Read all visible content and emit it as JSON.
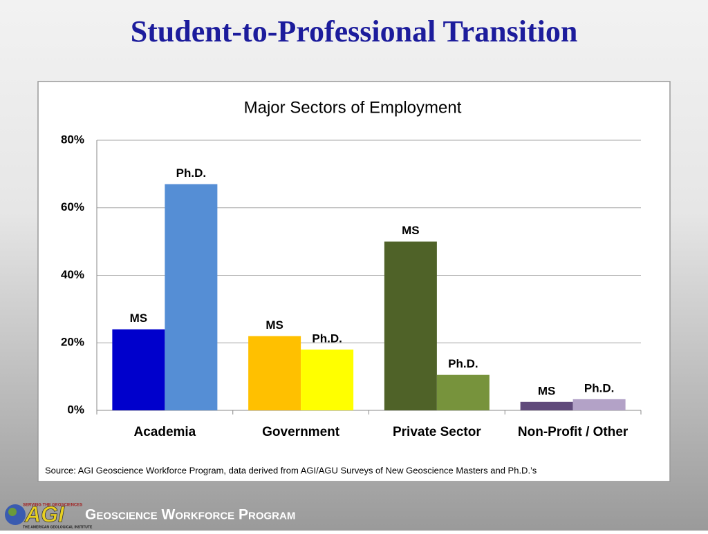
{
  "slide": {
    "title": "Student-to-Professional Transition"
  },
  "chart_data": {
    "type": "bar",
    "title": "Major Sectors of Employment",
    "categories": [
      "Academia",
      "Government",
      "Private Sector",
      "Non-Profit / Other"
    ],
    "series": [
      {
        "name": "MS",
        "colors": [
          "#0000cc",
          "#ffc000",
          "#4f6228",
          "#604a7b"
        ],
        "values": [
          24,
          22,
          50,
          2.5
        ]
      },
      {
        "name": "Ph.D.",
        "colors": [
          "#558ed5",
          "#ffff00",
          "#77933c",
          "#b3a2c7"
        ],
        "values": [
          67,
          18,
          10.5,
          3.3
        ]
      }
    ],
    "ylim": [
      0,
      80
    ],
    "yticks": [
      {
        "value": 0,
        "label": "0%"
      },
      {
        "value": 20,
        "label": "20%"
      },
      {
        "value": 40,
        "label": "40%"
      },
      {
        "value": 60,
        "label": "60%"
      },
      {
        "value": 80,
        "label": "80%"
      }
    ],
    "grid": true,
    "source": "Source: AGI Geoscience Workforce Program, data derived  from AGI/AGU Surveys of New Geoscience Masters and Ph.D.’s"
  },
  "footer": {
    "program": "Geoscience Workforce Program",
    "logo": "AGI",
    "logo_top": "SERVING THE GEOSCIENCES",
    "logo_bottom": "THE AMERICAN GEOLOGICAL INSTITUTE"
  }
}
